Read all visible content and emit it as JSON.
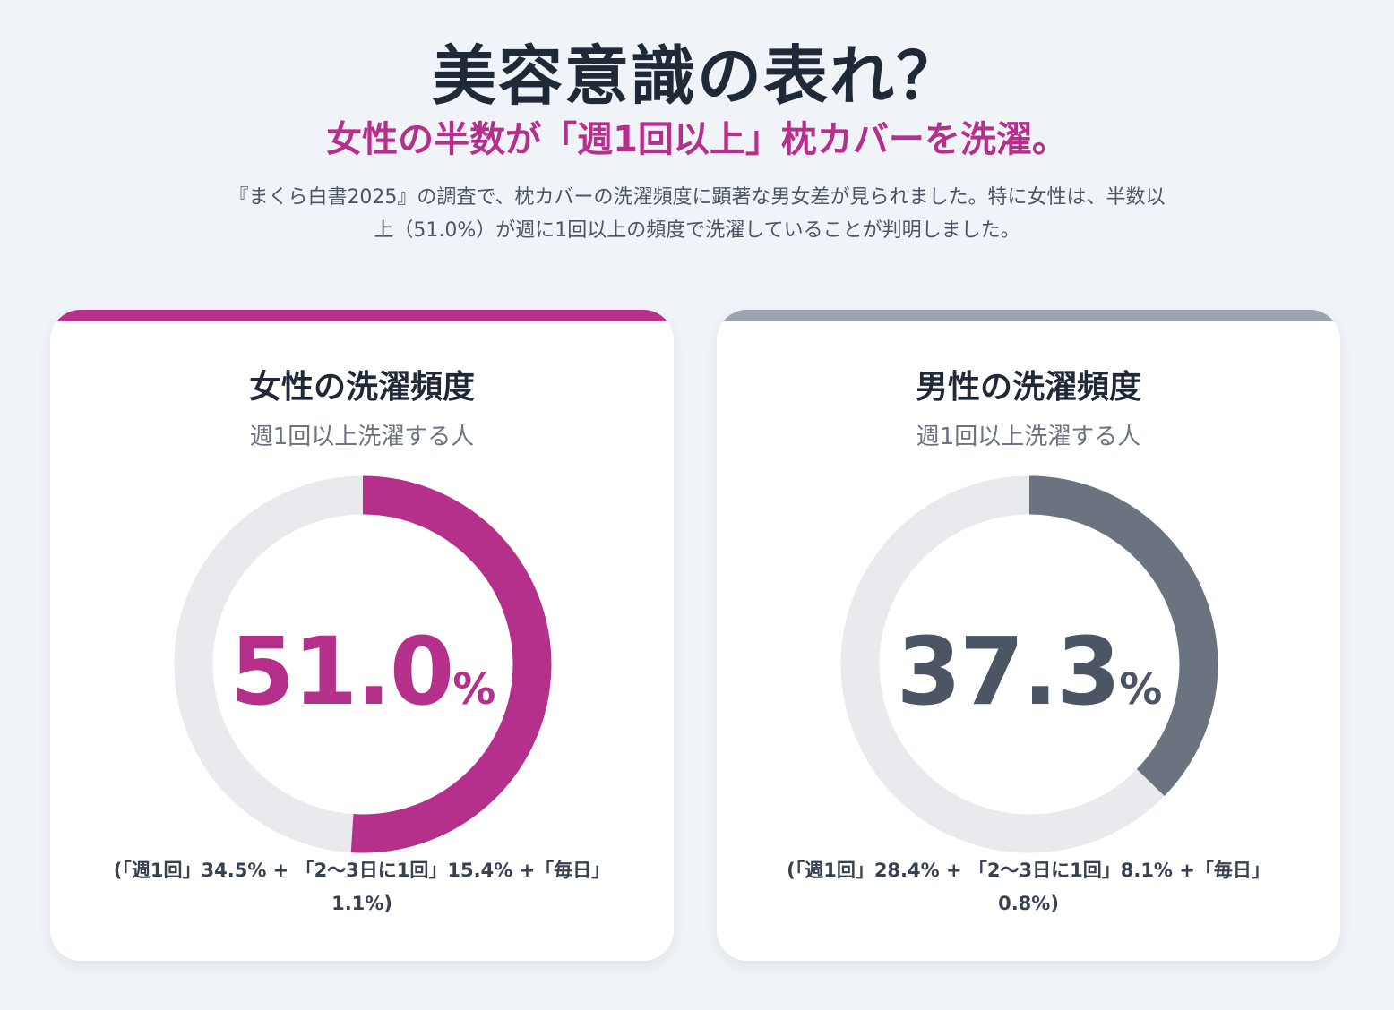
{
  "header": {
    "title": "美容意識の表れ？",
    "subtitle": "女性の半数が「週1回以上」枕カバーを洗濯。",
    "description_line1": "『まくら白書2025』の調査で、枕カバーの洗濯頻度に顕著な男女差が見られました。特に女性は、半数以",
    "description_line2": "上（51.0%）が週に1回以上の頻度で洗濯していることが判明しました。"
  },
  "cards": [
    {
      "title": "女性の洗濯頻度",
      "subtitle": "週1回以上洗濯する人",
      "value_text": "51.0",
      "unit": "%",
      "note_line1": "(「週1回」34.5% + 「2〜3日に1回」15.4% +「毎日」",
      "note_line2": "1.1%)"
    },
    {
      "title": "男性の洗濯頻度",
      "subtitle": "週1回以上洗濯する人",
      "value_text": "37.3",
      "unit": "%",
      "note_line1": "(「週1回」28.4% + 「2〜3日に1回」8.1% +「毎日」",
      "note_line2": "0.8%)"
    }
  ],
  "chart_data": [
    {
      "type": "pie",
      "title": "女性の洗濯頻度",
      "subtitle": "週1回以上洗濯する人",
      "value": 51.0,
      "max": 100,
      "color": "#b5308b",
      "track_color": "#e8eaee",
      "breakdown": [
        {
          "label": "週1回",
          "value": 34.5
        },
        {
          "label": "2〜3日に1回",
          "value": 15.4
        },
        {
          "label": "毎日",
          "value": 1.1
        }
      ]
    },
    {
      "type": "pie",
      "title": "男性の洗濯頻度",
      "subtitle": "週1回以上洗濯する人",
      "value": 37.3,
      "max": 100,
      "color": "#6b7280",
      "track_color": "#e8eaee",
      "breakdown": [
        {
          "label": "週1回",
          "value": 28.4
        },
        {
          "label": "2〜3日に1回",
          "value": 8.1
        },
        {
          "label": "毎日",
          "value": 0.8
        }
      ]
    }
  ]
}
